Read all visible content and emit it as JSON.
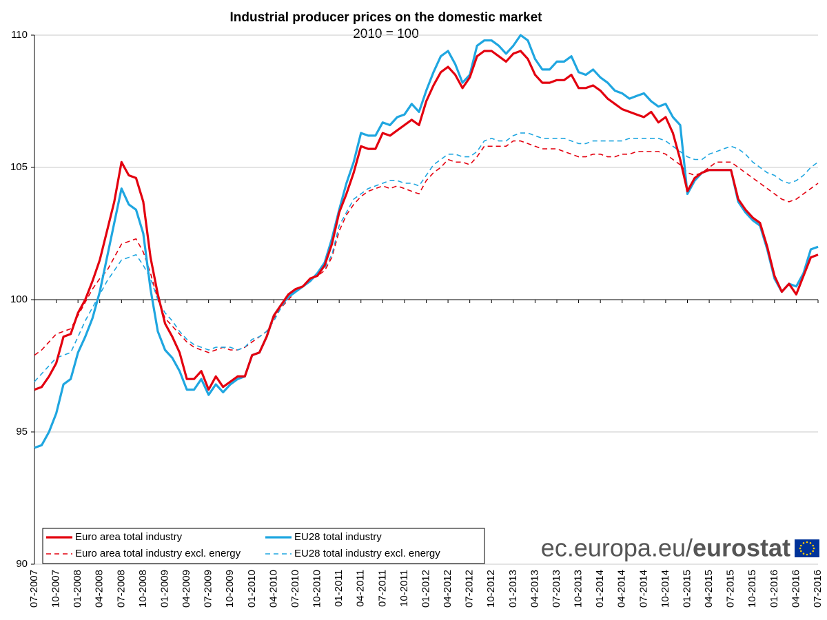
{
  "chart_data": {
    "type": "line",
    "title": "Industrial producer prices on the domestic market",
    "subtitle": "2010 = 100",
    "categories": [
      "07-2007",
      null,
      null,
      "10-2007",
      null,
      null,
      "01-2008",
      null,
      null,
      "04-2008",
      null,
      null,
      "07-2008",
      null,
      null,
      "10-2008",
      null,
      null,
      "01-2009",
      null,
      null,
      "04-2009",
      null,
      null,
      "07-2009",
      null,
      null,
      "10-2009",
      null,
      null,
      "01-2010",
      null,
      null,
      "04-2010",
      null,
      null,
      "07-2010",
      null,
      null,
      "10-2010",
      null,
      null,
      "01-2011",
      null,
      null,
      "04-2011",
      null,
      null,
      "07-2011",
      null,
      null,
      "10-2011",
      null,
      null,
      "01-2012",
      null,
      null,
      "04-2012",
      null,
      null,
      "07-2012",
      null,
      null,
      "10-2012",
      null,
      null,
      "01-2013",
      null,
      null,
      "04-2013",
      null,
      null,
      "07-2013",
      null,
      null,
      "10-2013",
      null,
      null,
      "01-2014",
      null,
      null,
      "04-2014",
      null,
      null,
      "07-2014",
      null,
      null,
      "10-2014",
      null,
      null,
      "01-2015",
      null,
      null,
      "04-2015",
      null,
      null,
      "07-2015",
      null,
      null,
      "10-2015",
      null,
      null,
      "01-2016",
      null,
      null,
      "04-2016",
      null,
      null,
      "07-2016"
    ],
    "series": [
      {
        "name": "Euro area total industry",
        "color": "#e3000f",
        "dashed": false,
        "values": [
          96.6,
          96.7,
          97.1,
          97.6,
          98.6,
          98.7,
          99.5,
          100.0,
          100.7,
          101.5,
          102.6,
          103.7,
          105.2,
          104.7,
          104.6,
          103.7,
          101.6,
          100.2,
          99.1,
          98.6,
          98.0,
          97.0,
          97.0,
          97.3,
          96.6,
          97.1,
          96.7,
          96.9,
          97.1,
          97.1,
          97.9,
          98.0,
          98.6,
          99.4,
          99.8,
          100.2,
          100.4,
          100.5,
          100.8,
          100.9,
          101.3,
          102.1,
          103.3,
          104.0,
          104.8,
          105.8,
          105.7,
          105.7,
          106.3,
          106.2,
          106.4,
          106.6,
          106.8,
          106.6,
          107.5,
          108.1,
          108.6,
          108.8,
          108.5,
          108.0,
          108.4,
          109.2,
          109.4,
          109.4,
          109.2,
          109.0,
          109.3,
          109.4,
          109.1,
          108.5,
          108.2,
          108.2,
          108.3,
          108.3,
          108.5,
          108.0,
          108.0,
          108.1,
          107.9,
          107.6,
          107.4,
          107.2,
          107.1,
          107.0,
          106.9,
          107.1,
          106.7,
          106.9,
          106.3,
          105.3,
          104.1,
          104.6,
          104.8,
          104.9,
          104.9,
          104.9,
          104.9,
          103.8,
          103.4,
          103.1,
          102.9,
          102.0,
          100.9,
          100.3,
          100.6,
          100.2,
          100.9,
          101.6,
          101.7
        ]
      },
      {
        "name": "EU28 total industry",
        "color": "#1fa6e0",
        "dashed": false,
        "values": [
          94.4,
          94.5,
          95.0,
          95.7,
          96.8,
          97.0,
          98.0,
          98.6,
          99.3,
          100.3,
          101.6,
          102.9,
          104.2,
          103.6,
          103.4,
          102.5,
          100.4,
          98.8,
          98.1,
          97.8,
          97.3,
          96.6,
          96.6,
          97.0,
          96.4,
          96.8,
          96.5,
          96.8,
          97.0,
          97.1,
          97.9,
          98.0,
          98.6,
          99.4,
          99.8,
          100.1,
          100.3,
          100.5,
          100.7,
          101.0,
          101.4,
          102.3,
          103.4,
          104.4,
          105.2,
          106.3,
          106.2,
          106.2,
          106.7,
          106.6,
          106.9,
          107.0,
          107.4,
          107.1,
          107.9,
          108.6,
          109.2,
          109.4,
          108.9,
          108.2,
          108.5,
          109.6,
          109.8,
          109.8,
          109.6,
          109.3,
          109.6,
          110.0,
          109.8,
          109.1,
          108.7,
          108.7,
          109.0,
          109.0,
          109.2,
          108.6,
          108.5,
          108.7,
          108.4,
          108.2,
          107.9,
          107.8,
          107.6,
          107.7,
          107.8,
          107.5,
          107.3,
          107.4,
          106.9,
          106.6,
          104.0,
          104.5,
          104.8,
          104.9,
          104.9,
          104.9,
          104.9,
          103.7,
          103.3,
          103.0,
          102.8,
          101.9,
          100.8,
          100.3,
          100.6,
          100.5,
          101.0,
          101.9,
          102.0
        ]
      },
      {
        "name": "Euro area total industry excl. energy",
        "color": "#e3000f",
        "dashed": true,
        "values": [
          97.9,
          98.1,
          98.4,
          98.7,
          98.8,
          98.9,
          99.4,
          99.9,
          100.4,
          100.8,
          101.1,
          101.6,
          102.1,
          102.2,
          102.3,
          101.8,
          101.0,
          100.0,
          99.3,
          99.0,
          98.7,
          98.4,
          98.2,
          98.1,
          98.0,
          98.1,
          98.2,
          98.1,
          98.1,
          98.2,
          98.4,
          98.6,
          98.8,
          99.3,
          99.7,
          100.0,
          100.3,
          100.5,
          100.8,
          100.9,
          101.1,
          101.6,
          102.6,
          103.2,
          103.6,
          103.9,
          104.1,
          104.2,
          104.3,
          104.2,
          104.3,
          104.2,
          104.1,
          104.0,
          104.5,
          104.8,
          105.0,
          105.3,
          105.2,
          105.2,
          105.1,
          105.4,
          105.8,
          105.8,
          105.8,
          105.8,
          106.0,
          106.0,
          105.9,
          105.8,
          105.7,
          105.7,
          105.7,
          105.6,
          105.5,
          105.4,
          105.4,
          105.5,
          105.5,
          105.4,
          105.4,
          105.5,
          105.5,
          105.6,
          105.6,
          105.6,
          105.6,
          105.5,
          105.3,
          105.1,
          104.8,
          104.7,
          104.8,
          105.0,
          105.2,
          105.2,
          105.2,
          105.0,
          104.8,
          104.6,
          104.4,
          104.2,
          104.0,
          103.8,
          103.7,
          103.8,
          104.0,
          104.2,
          104.4
        ]
      },
      {
        "name": "EU28 total industry excl. energy",
        "color": "#1fa6e0",
        "dashed": true,
        "values": [
          96.9,
          97.2,
          97.5,
          97.8,
          97.9,
          98.0,
          98.6,
          99.2,
          99.7,
          100.2,
          100.7,
          101.1,
          101.5,
          101.6,
          101.7,
          101.3,
          100.8,
          100.0,
          99.5,
          99.2,
          98.8,
          98.5,
          98.3,
          98.2,
          98.1,
          98.2,
          98.2,
          98.2,
          98.1,
          98.2,
          98.5,
          98.6,
          98.8,
          99.2,
          99.7,
          100.1,
          100.4,
          100.5,
          100.7,
          101.0,
          101.2,
          101.7,
          102.8,
          103.3,
          103.8,
          104.0,
          104.2,
          104.3,
          104.4,
          104.5,
          104.5,
          104.4,
          104.4,
          104.3,
          104.7,
          105.1,
          105.3,
          105.5,
          105.5,
          105.4,
          105.4,
          105.6,
          106.0,
          106.1,
          106.0,
          106.0,
          106.2,
          106.3,
          106.3,
          106.2,
          106.1,
          106.1,
          106.1,
          106.1,
          106.0,
          105.9,
          105.9,
          106.0,
          106.0,
          106.0,
          106.0,
          106.0,
          106.1,
          106.1,
          106.1,
          106.1,
          106.1,
          106.0,
          105.8,
          105.6,
          105.4,
          105.3,
          105.3,
          105.5,
          105.6,
          105.7,
          105.8,
          105.7,
          105.5,
          105.2,
          105.0,
          104.8,
          104.7,
          104.5,
          104.4,
          104.5,
          104.7,
          105.0,
          105.2
        ]
      }
    ],
    "ylim": [
      90,
      110
    ],
    "yticks": [
      90,
      95,
      100,
      105,
      110
    ],
    "baseline": 100,
    "grid": true,
    "watermark": {
      "site": "ec.europa.eu/",
      "brand": "eurostat"
    }
  }
}
